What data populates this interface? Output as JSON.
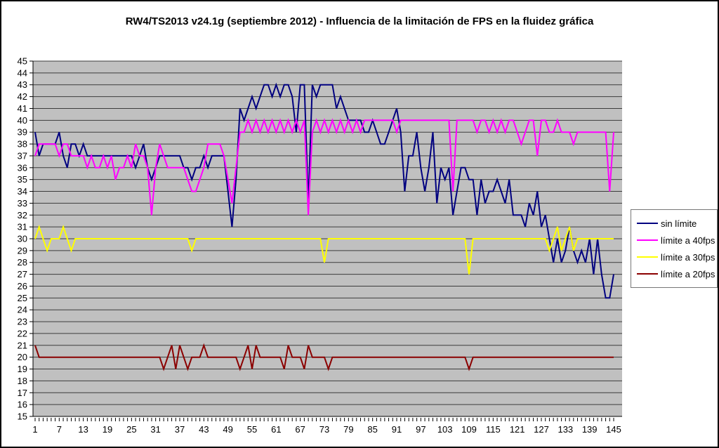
{
  "title": "RW4/TS2013 v24.1g (septiembre 2012) - Influencia de la limitación de FPS en la fluidez gráfica",
  "chart_data": {
    "type": "line",
    "title": "RW4/TS2013 v24.1g (septiembre 2012) - Influencia de la limitación de FPS en la fluidez gráfica",
    "xlabel": "",
    "ylabel": "",
    "x_start": 1,
    "x_end": 145,
    "ylim": [
      15,
      45
    ],
    "ytick_step": 1,
    "xticks": [
      1,
      7,
      13,
      19,
      25,
      31,
      37,
      43,
      49,
      55,
      61,
      67,
      73,
      79,
      85,
      91,
      97,
      103,
      109,
      115,
      121,
      127,
      133,
      139,
      145
    ],
    "grid": true,
    "plot_bg": "#c0c0c0",
    "grid_color": "#3c3c3c",
    "axis_color": "#000000",
    "legend_position": "right",
    "series": [
      {
        "name": "sin límite",
        "color": "#000080",
        "values": [
          39,
          37,
          38,
          38,
          38,
          38,
          39,
          37,
          36,
          38,
          38,
          37,
          38,
          37,
          37,
          37,
          37,
          37,
          37,
          37,
          37,
          37,
          37,
          37,
          37,
          36,
          37,
          38,
          36,
          35,
          36,
          37,
          37,
          37,
          37,
          37,
          37,
          36,
          36,
          35,
          36,
          36,
          37,
          36,
          37,
          37,
          37,
          37,
          34,
          31,
          35,
          41,
          40,
          41,
          42,
          41,
          42,
          43,
          43,
          42,
          43,
          42,
          43,
          43,
          42,
          39,
          43,
          43,
          33,
          43,
          42,
          43,
          43,
          43,
          43,
          41,
          42,
          41,
          40,
          40,
          40,
          40,
          39,
          39,
          40,
          39,
          38,
          38,
          39,
          40,
          41,
          39,
          34,
          37,
          37,
          39,
          36,
          34,
          36,
          39,
          33,
          36,
          35,
          36,
          32,
          34,
          36,
          36,
          35,
          35,
          32,
          35,
          33,
          34,
          34,
          35,
          34,
          33,
          35,
          32,
          32,
          32,
          31,
          33,
          32,
          34,
          31,
          32,
          30,
          28,
          30,
          28,
          29,
          31,
          29,
          28,
          29,
          28,
          30,
          27,
          30,
          27,
          25,
          25,
          27
        ]
      },
      {
        "name": "límite a 40fps",
        "color": "#ff00ff",
        "values": [
          37,
          38,
          38,
          38,
          38,
          38,
          37,
          38,
          38,
          37,
          37,
          37,
          37,
          36,
          37,
          36,
          36,
          37,
          36,
          37,
          35,
          36,
          36,
          37,
          36,
          38,
          37,
          37,
          36,
          32,
          36,
          38,
          37,
          36,
          36,
          36,
          36,
          36,
          35,
          34,
          34,
          35,
          36,
          38,
          38,
          38,
          38,
          37,
          35,
          33,
          36,
          39,
          39,
          40,
          39,
          40,
          39,
          40,
          39,
          40,
          39,
          40,
          39,
          40,
          39,
          40,
          39,
          40,
          32,
          39,
          40,
          39,
          40,
          39,
          40,
          39,
          40,
          39,
          40,
          39,
          40,
          39,
          40,
          40,
          40,
          40,
          40,
          40,
          40,
          40,
          39,
          40,
          40,
          40,
          40,
          40,
          40,
          40,
          40,
          40,
          40,
          40,
          40,
          40,
          34,
          40,
          40,
          40,
          40,
          40,
          39,
          40,
          40,
          39,
          40,
          39,
          40,
          39,
          40,
          40,
          39,
          38,
          39,
          40,
          40,
          37,
          40,
          40,
          39,
          39,
          40,
          39,
          39,
          39,
          38,
          39,
          39,
          39,
          39,
          39,
          39,
          39,
          39,
          34,
          39
        ]
      },
      {
        "name": "límite a 30fps",
        "color": "#ffff00",
        "values": [
          30,
          31,
          30,
          29,
          30,
          30,
          30,
          31,
          30,
          29,
          30,
          30,
          30,
          30,
          30,
          30,
          30,
          30,
          30,
          30,
          30,
          30,
          30,
          30,
          30,
          30,
          30,
          30,
          30,
          30,
          30,
          30,
          30,
          30,
          30,
          30,
          30,
          30,
          30,
          29,
          30,
          30,
          30,
          30,
          30,
          30,
          30,
          30,
          30,
          30,
          30,
          30,
          30,
          30,
          30,
          30,
          30,
          30,
          30,
          30,
          30,
          30,
          30,
          30,
          30,
          30,
          30,
          30,
          30,
          30,
          30,
          30,
          28,
          30,
          30,
          30,
          30,
          30,
          30,
          30,
          30,
          30,
          30,
          30,
          30,
          30,
          30,
          30,
          30,
          30,
          30,
          30,
          30,
          30,
          30,
          30,
          30,
          30,
          30,
          30,
          30,
          30,
          30,
          30,
          30,
          30,
          30,
          30,
          27,
          30,
          30,
          30,
          30,
          30,
          30,
          30,
          30,
          30,
          30,
          30,
          30,
          30,
          30,
          30,
          30,
          30,
          30,
          30,
          29,
          30,
          31,
          29,
          30,
          31,
          29,
          30,
          30,
          30,
          30,
          30,
          30,
          30,
          30,
          30,
          30
        ]
      },
      {
        "name": "límite a 20fps",
        "color": "#8b0000",
        "values": [
          21,
          20,
          20,
          20,
          20,
          20,
          20,
          20,
          20,
          20,
          20,
          20,
          20,
          20,
          20,
          20,
          20,
          20,
          20,
          20,
          20,
          20,
          20,
          20,
          20,
          20,
          20,
          20,
          20,
          20,
          20,
          20,
          19,
          20,
          21,
          19,
          21,
          20,
          19,
          20,
          20,
          20,
          21,
          20,
          20,
          20,
          20,
          20,
          20,
          20,
          20,
          19,
          20,
          21,
          19,
          21,
          20,
          20,
          20,
          20,
          20,
          20,
          19,
          21,
          20,
          20,
          20,
          19,
          21,
          20,
          20,
          20,
          20,
          19,
          20,
          20,
          20,
          20,
          20,
          20,
          20,
          20,
          20,
          20,
          20,
          20,
          20,
          20,
          20,
          20,
          20,
          20,
          20,
          20,
          20,
          20,
          20,
          20,
          20,
          20,
          20,
          20,
          20,
          20,
          20,
          20,
          20,
          20,
          19,
          20,
          20,
          20,
          20,
          20,
          20,
          20,
          20,
          20,
          20,
          20,
          20,
          20,
          20,
          20,
          20,
          20,
          20,
          20,
          20,
          20,
          20,
          20,
          20,
          20,
          20,
          20,
          20,
          20,
          20,
          20,
          20,
          20,
          20,
          20,
          20
        ]
      }
    ]
  }
}
